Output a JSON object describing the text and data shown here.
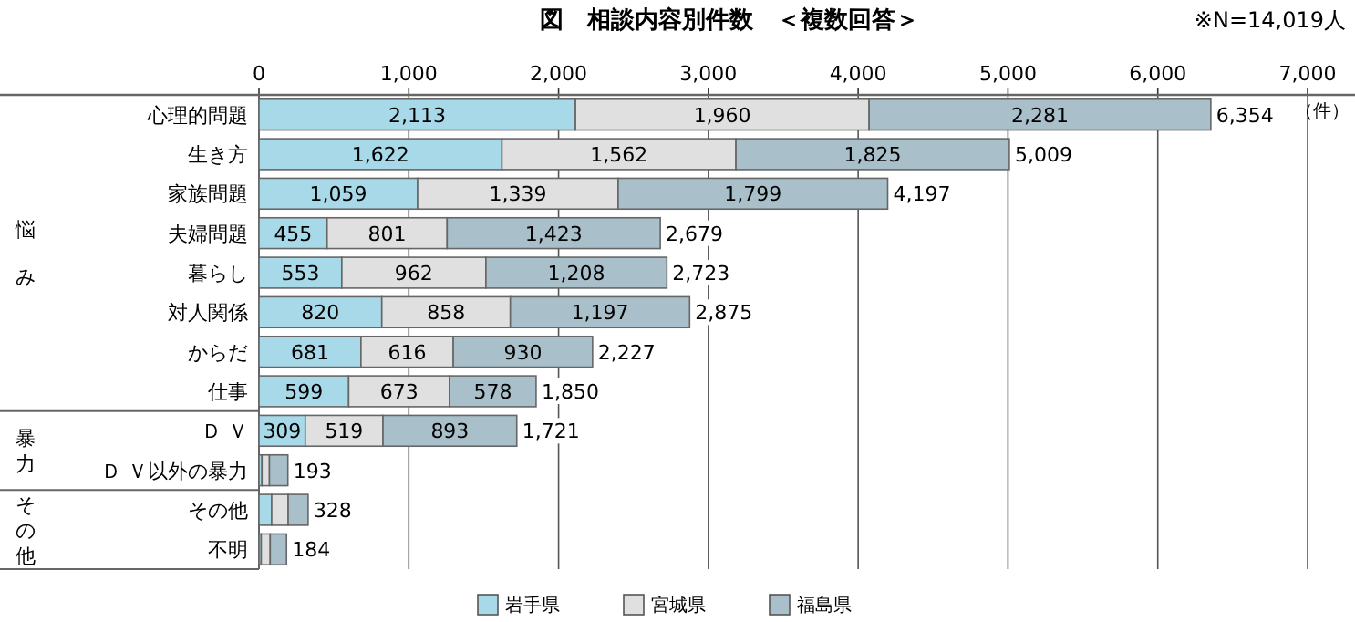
{
  "chart_data": {
    "type": "bar",
    "orientation": "horizontal",
    "stacked": true,
    "title": "図　相談内容別件数　＜複数回答＞",
    "xlabel": "（件）",
    "annotations": [
      "※N=14,019人",
      "悩み",
      "暴力",
      "その他"
    ],
    "categories": [
      "心理的問題",
      "生き方",
      "家族問題",
      "夫婦問題",
      "暮らし",
      "対人関係",
      "からだ",
      "仕事",
      "Ｄ Ｖ",
      "Ｄ Ｖ以外の暴力",
      "その他",
      "不明"
    ],
    "series": [
      {
        "name": "岩手県",
        "color": "#a8d9e8",
        "values": [
          2113,
          1622,
          1059,
          455,
          553,
          820,
          681,
          599,
          309,
          20,
          85,
          15
        ],
        "value_labels": [
          "2,113",
          "1,622",
          "1,059",
          "455",
          "553",
          "820",
          "681",
          "599",
          "309",
          null,
          null,
          null
        ]
      },
      {
        "name": "宮城県",
        "color": "#e0e0e0",
        "values": [
          1960,
          1562,
          1339,
          801,
          962,
          858,
          616,
          673,
          519,
          50,
          110,
          60
        ],
        "value_labels": [
          "1,960",
          "1,562",
          "1,339",
          "801",
          "962",
          "858",
          "616",
          "673",
          "519",
          null,
          null,
          null
        ]
      },
      {
        "name": "福島県",
        "color": "#a9bfc9",
        "values": [
          2281,
          1825,
          1799,
          1423,
          1208,
          1197,
          930,
          578,
          893,
          123,
          133,
          109
        ],
        "value_labels": [
          "2,281",
          "1,825",
          "1,799",
          "1,423",
          "1,208",
          "1,197",
          "930",
          "578",
          "893",
          null,
          null,
          null
        ]
      }
    ],
    "totals": [
      "6,354",
      "5,009",
      "4,197",
      "2,679",
      "2,723",
      "2,875",
      "2,227",
      "1,850",
      "1,721",
      "193",
      "328",
      "184"
    ],
    "xlim": [
      0,
      7000
    ],
    "xticks": [
      0,
      {
        "value": 1000,
        "label": "1,000"
      },
      {
        "value": 2000,
        "label": "2,000"
      },
      {
        "value": 3000,
        "label": "3,000"
      },
      {
        "value": 4000,
        "label": "4,000"
      },
      {
        "value": 5000,
        "label": "5,000"
      },
      {
        "value": 6000,
        "label": "6,000"
      },
      {
        "value": 7000,
        "label": "7,000"
      }
    ],
    "grid": "x",
    "legend": "bottom"
  }
}
